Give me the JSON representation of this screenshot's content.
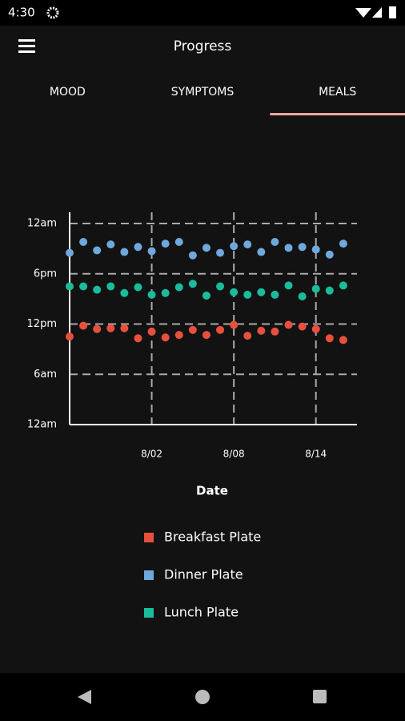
{
  "status_bar": {
    "time": "4:30"
  },
  "app_bar": {
    "title": "Progress"
  },
  "tabs": {
    "items": [
      "MOOD",
      "SYMPTOMS",
      "MEALS"
    ],
    "selected": 2
  },
  "chart_data": {
    "type": "scatter",
    "xlabel": "Date",
    "x": [
      "7/27",
      "7/28",
      "7/29",
      "7/30",
      "7/31",
      "8/01",
      "8/02",
      "8/03",
      "8/04",
      "8/05",
      "8/06",
      "8/07",
      "8/08",
      "8/09",
      "8/10",
      "8/11",
      "8/12",
      "8/13",
      "8/14",
      "8/15",
      "8/16"
    ],
    "xlim": [
      "7/27",
      "8/17"
    ],
    "xticks": [
      "8/02",
      "8/08",
      "8/14"
    ],
    "ylim": [
      0,
      24
    ],
    "yticks": [
      {
        "value": 0,
        "label": "12am"
      },
      {
        "value": 6,
        "label": "6am"
      },
      {
        "value": 12,
        "label": "12pm"
      },
      {
        "value": 18,
        "label": "6pm"
      },
      {
        "value": 24,
        "label": "12am"
      }
    ],
    "grid": true,
    "series": [
      {
        "name": "Breakfast Plate",
        "color": "#e8503e",
        "values": [
          10.5,
          11.8,
          11.4,
          11.5,
          11.5,
          10.3,
          11.1,
          10.4,
          10.7,
          11.3,
          10.7,
          11.3,
          11.9,
          10.6,
          11.2,
          11.1,
          11.9,
          11.7,
          11.4,
          10.3,
          10.1
        ]
      },
      {
        "name": "Dinner Plate",
        "color": "#6fa8dc",
        "values": [
          20.5,
          21.8,
          20.8,
          21.5,
          20.6,
          21.2,
          20.7,
          21.6,
          21.8,
          20.2,
          21.1,
          20.5,
          21.3,
          21.5,
          20.6,
          21.8,
          21.1,
          21.2,
          20.9,
          20.3,
          21.6
        ]
      },
      {
        "name": "Lunch Plate",
        "color": "#1abc9c",
        "values": [
          16.5,
          16.5,
          16.1,
          16.5,
          15.7,
          16.4,
          15.5,
          15.7,
          16.4,
          16.8,
          15.4,
          16.5,
          15.8,
          15.5,
          15.8,
          15.5,
          16.6,
          15.3,
          16.2,
          16.0,
          16.6
        ]
      }
    ]
  }
}
